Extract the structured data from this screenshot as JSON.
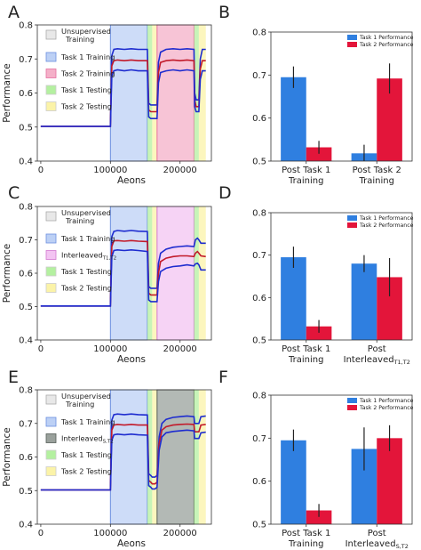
{
  "colors": {
    "task1": "#2f7fe0",
    "task2": "#e3153a",
    "unsup": "#e8e8e8",
    "task1_training": "#bcd0f5",
    "task2_training": "#f4b0c8",
    "interleaved_ac": "#f3c4f2",
    "interleaved_e": "#9aa19c",
    "task1_testing": "#b4f0a0",
    "task2_testing": "#fbf3a8",
    "trace_dark": "#1e2ccf",
    "trace_red": "#c21a2a"
  },
  "chart_data": [
    {
      "id": "A",
      "type": "line",
      "panel_label": "A",
      "xlabel": "Aeons",
      "ylabel": "Performance",
      "xlim": [
        -5000,
        245000
      ],
      "ylim": [
        0.4,
        0.8
      ],
      "xticks": [
        0,
        100000,
        200000
      ],
      "yticks": [
        0.4,
        0.5,
        0.6,
        0.7,
        0.8
      ],
      "legend": [
        "Unsupervised\nTraining",
        "Task 1 Training",
        "Task 2 Training",
        "Task 1 Testing",
        "Task 2 Testing"
      ],
      "legend_keys": [
        "unsup",
        "task1_training",
        "task2_training",
        "task1_testing",
        "task2_testing"
      ],
      "phases": [
        {
          "key": "task1_training",
          "start": 100000,
          "end": 153000
        },
        {
          "key": "task1_testing",
          "start": 153000,
          "end": 160000
        },
        {
          "key": "task2_testing",
          "start": 160000,
          "end": 167000
        },
        {
          "key": "task2_training",
          "start": 167000,
          "end": 220000
        },
        {
          "key": "task1_testing",
          "start": 220000,
          "end": 227000
        },
        {
          "key": "task2_testing",
          "start": 227000,
          "end": 237000
        }
      ],
      "series": [
        {
          "color": "trace_dark",
          "x": [
            0,
            100000,
            102000,
            105000,
            110000,
            120000,
            130000,
            140000,
            153000,
            155000,
            158000,
            160000,
            164000,
            167000,
            169000,
            172000,
            180000,
            190000,
            200000,
            210000,
            220000,
            221000,
            223000,
            225000,
            227000,
            229000,
            232000,
            237000
          ],
          "y": [
            0.502,
            0.502,
            0.71,
            0.728,
            0.73,
            0.728,
            0.73,
            0.728,
            0.728,
            0.57,
            0.565,
            0.565,
            0.565,
            0.565,
            0.69,
            0.72,
            0.728,
            0.73,
            0.728,
            0.73,
            0.728,
            0.6,
            0.58,
            0.58,
            0.58,
            0.7,
            0.728,
            0.728
          ]
        },
        {
          "color": "trace_red",
          "x": [
            0,
            100000,
            102000,
            105000,
            110000,
            120000,
            130000,
            140000,
            153000,
            155000,
            158000,
            160000,
            164000,
            167000,
            169000,
            172000,
            180000,
            190000,
            200000,
            210000,
            220000,
            221000,
            223000,
            225000,
            227000,
            229000,
            232000,
            237000
          ],
          "y": [
            0.502,
            0.502,
            0.68,
            0.695,
            0.697,
            0.695,
            0.697,
            0.695,
            0.695,
            0.55,
            0.545,
            0.545,
            0.545,
            0.545,
            0.66,
            0.69,
            0.695,
            0.697,
            0.695,
            0.697,
            0.695,
            0.58,
            0.56,
            0.56,
            0.56,
            0.67,
            0.695,
            0.695
          ]
        },
        {
          "color": "trace_dark",
          "x": [
            0,
            100000,
            102000,
            105000,
            110000,
            120000,
            130000,
            140000,
            153000,
            155000,
            158000,
            160000,
            164000,
            167000,
            169000,
            172000,
            180000,
            190000,
            200000,
            210000,
            220000,
            221000,
            223000,
            225000,
            227000,
            229000,
            232000,
            237000
          ],
          "y": [
            0.502,
            0.502,
            0.65,
            0.665,
            0.668,
            0.665,
            0.668,
            0.665,
            0.665,
            0.53,
            0.525,
            0.525,
            0.525,
            0.525,
            0.63,
            0.66,
            0.665,
            0.668,
            0.665,
            0.668,
            0.665,
            0.56,
            0.545,
            0.545,
            0.545,
            0.64,
            0.665,
            0.665
          ]
        }
      ]
    },
    {
      "id": "B",
      "type": "bar",
      "panel_label": "B",
      "categories": [
        "Post Task 1\nTraining",
        "Post Task 2\nTraining"
      ],
      "ylim": [
        0.5,
        0.8
      ],
      "yticks": [
        0.5,
        0.6,
        0.7,
        0.8
      ],
      "series": [
        {
          "name": "Task 1 Performance",
          "color": "task1",
          "values": [
            0.695,
            0.518
          ],
          "err": [
            0.025,
            0.02
          ]
        },
        {
          "name": "Task 2 Performance",
          "color": "task2",
          "values": [
            0.532,
            0.692
          ],
          "err": [
            0.015,
            0.035
          ]
        }
      ]
    },
    {
      "id": "C",
      "type": "line",
      "panel_label": "C",
      "xlabel": "Aeons",
      "ylabel": "Performance",
      "xlim": [
        -5000,
        245000
      ],
      "ylim": [
        0.4,
        0.8
      ],
      "xticks": [
        0,
        100000,
        200000
      ],
      "yticks": [
        0.4,
        0.5,
        0.6,
        0.7,
        0.8
      ],
      "legend": [
        "Unsupervised\nTraining",
        "Task 1 Training",
        "Interleaved",
        "Task 1 Testing",
        "Task 2 Testing"
      ],
      "legend_subscripts": {
        "2": "T1,T2"
      },
      "legend_keys": [
        "unsup",
        "task1_training",
        "interleaved_ac",
        "task1_testing",
        "task2_testing"
      ],
      "phases": [
        {
          "key": "task1_training",
          "start": 100000,
          "end": 153000
        },
        {
          "key": "task1_testing",
          "start": 153000,
          "end": 160000
        },
        {
          "key": "task2_testing",
          "start": 160000,
          "end": 167000
        },
        {
          "key": "interleaved_ac",
          "start": 167000,
          "end": 220000
        },
        {
          "key": "task1_testing",
          "start": 220000,
          "end": 227000
        },
        {
          "key": "task2_testing",
          "start": 227000,
          "end": 237000
        }
      ],
      "series": [
        {
          "color": "trace_dark",
          "x": [
            0,
            100000,
            102000,
            105000,
            110000,
            120000,
            130000,
            140000,
            153000,
            155000,
            158000,
            160000,
            164000,
            167000,
            169000,
            172000,
            180000,
            190000,
            200000,
            210000,
            220000,
            222000,
            225000,
            227000,
            230000,
            237000
          ],
          "y": [
            0.502,
            0.502,
            0.71,
            0.725,
            0.728,
            0.726,
            0.728,
            0.726,
            0.725,
            0.56,
            0.555,
            0.555,
            0.555,
            0.555,
            0.63,
            0.66,
            0.672,
            0.678,
            0.68,
            0.682,
            0.68,
            0.7,
            0.705,
            0.7,
            0.69,
            0.69
          ]
        },
        {
          "color": "trace_red",
          "x": [
            0,
            100000,
            102000,
            105000,
            110000,
            120000,
            130000,
            140000,
            153000,
            155000,
            158000,
            160000,
            164000,
            167000,
            169000,
            172000,
            180000,
            190000,
            200000,
            210000,
            220000,
            222000,
            225000,
            227000,
            230000,
            237000
          ],
          "y": [
            0.502,
            0.502,
            0.68,
            0.697,
            0.698,
            0.696,
            0.698,
            0.696,
            0.695,
            0.54,
            0.535,
            0.535,
            0.535,
            0.535,
            0.6,
            0.635,
            0.645,
            0.65,
            0.652,
            0.652,
            0.65,
            0.66,
            0.665,
            0.66,
            0.652,
            0.65
          ]
        },
        {
          "color": "trace_dark",
          "x": [
            0,
            100000,
            102000,
            105000,
            110000,
            120000,
            130000,
            140000,
            153000,
            155000,
            158000,
            160000,
            164000,
            167000,
            169000,
            172000,
            180000,
            190000,
            200000,
            210000,
            220000,
            222000,
            225000,
            227000,
            230000,
            237000
          ],
          "y": [
            0.502,
            0.502,
            0.65,
            0.668,
            0.67,
            0.668,
            0.67,
            0.668,
            0.665,
            0.52,
            0.515,
            0.515,
            0.515,
            0.515,
            0.575,
            0.605,
            0.615,
            0.62,
            0.622,
            0.625,
            0.622,
            0.628,
            0.63,
            0.625,
            0.61,
            0.61
          ]
        }
      ]
    },
    {
      "id": "D",
      "type": "bar",
      "panel_label": "D",
      "categories": [
        "Post Task 1\nTraining",
        "Post\nInterleaved"
      ],
      "category_subscripts": {
        "1": "T1,T2"
      },
      "ylim": [
        0.5,
        0.8
      ],
      "yticks": [
        0.5,
        0.6,
        0.7,
        0.8
      ],
      "series": [
        {
          "name": "Task 1 Performance",
          "color": "task1",
          "values": [
            0.695,
            0.68
          ],
          "err": [
            0.025,
            0.02
          ]
        },
        {
          "name": "Task 2 Performance",
          "color": "task2",
          "values": [
            0.532,
            0.648
          ],
          "err": [
            0.015,
            0.045
          ]
        }
      ]
    },
    {
      "id": "E",
      "type": "line",
      "panel_label": "E",
      "xlabel": "Aeons",
      "ylabel": "Performance",
      "xlim": [
        -5000,
        245000
      ],
      "ylim": [
        0.4,
        0.8
      ],
      "xticks": [
        0,
        100000,
        200000
      ],
      "yticks": [
        0.4,
        0.5,
        0.6,
        0.7,
        0.8
      ],
      "legend": [
        "Unsupervised\nTraining",
        "Task 1 Training",
        "Interleaved",
        "Task 1 Testing",
        "Task 2 Testing"
      ],
      "legend_subscripts": {
        "2": "S,T2"
      },
      "legend_keys": [
        "unsup",
        "task1_training",
        "interleaved_e",
        "task1_testing",
        "task2_testing"
      ],
      "phases": [
        {
          "key": "task1_training",
          "start": 100000,
          "end": 153000
        },
        {
          "key": "task1_testing",
          "start": 153000,
          "end": 160000
        },
        {
          "key": "task2_testing",
          "start": 160000,
          "end": 167000
        },
        {
          "key": "interleaved_e",
          "start": 167000,
          "end": 220000
        },
        {
          "key": "task1_testing",
          "start": 220000,
          "end": 227000
        },
        {
          "key": "task2_testing",
          "start": 227000,
          "end": 237000
        }
      ],
      "series": [
        {
          "color": "trace_dark",
          "x": [
            0,
            100000,
            102000,
            105000,
            110000,
            120000,
            130000,
            140000,
            153000,
            155000,
            158000,
            160000,
            164000,
            167000,
            170000,
            174000,
            180000,
            190000,
            200000,
            210000,
            220000,
            221000,
            223000,
            225000,
            227000,
            230000,
            237000
          ],
          "y": [
            0.502,
            0.502,
            0.71,
            0.726,
            0.728,
            0.726,
            0.728,
            0.726,
            0.725,
            0.55,
            0.545,
            0.54,
            0.54,
            0.545,
            0.66,
            0.7,
            0.712,
            0.718,
            0.72,
            0.722,
            0.72,
            0.7,
            0.7,
            0.7,
            0.7,
            0.72,
            0.722
          ]
        },
        {
          "color": "trace_red",
          "x": [
            0,
            100000,
            102000,
            105000,
            110000,
            120000,
            130000,
            140000,
            153000,
            155000,
            158000,
            160000,
            164000,
            167000,
            170000,
            174000,
            180000,
            190000,
            200000,
            210000,
            220000,
            221000,
            223000,
            225000,
            227000,
            230000,
            237000
          ],
          "y": [
            0.502,
            0.502,
            0.68,
            0.695,
            0.697,
            0.695,
            0.697,
            0.695,
            0.695,
            0.53,
            0.525,
            0.52,
            0.52,
            0.525,
            0.64,
            0.68,
            0.69,
            0.695,
            0.697,
            0.698,
            0.697,
            0.675,
            0.675,
            0.675,
            0.675,
            0.695,
            0.697
          ]
        },
        {
          "color": "trace_dark",
          "x": [
            0,
            100000,
            102000,
            105000,
            110000,
            120000,
            130000,
            140000,
            153000,
            155000,
            158000,
            160000,
            164000,
            167000,
            170000,
            174000,
            180000,
            190000,
            200000,
            210000,
            220000,
            221000,
            223000,
            225000,
            227000,
            230000,
            237000
          ],
          "y": [
            0.502,
            0.502,
            0.65,
            0.666,
            0.668,
            0.666,
            0.668,
            0.666,
            0.665,
            0.515,
            0.51,
            0.505,
            0.505,
            0.51,
            0.62,
            0.66,
            0.672,
            0.676,
            0.678,
            0.68,
            0.678,
            0.655,
            0.655,
            0.655,
            0.655,
            0.672,
            0.674
          ]
        }
      ]
    },
    {
      "id": "F",
      "type": "bar",
      "panel_label": "F",
      "categories": [
        "Post Task 1\nTraining",
        "Post\nInterleaved"
      ],
      "category_subscripts": {
        "1": "S,T2"
      },
      "ylim": [
        0.5,
        0.8
      ],
      "yticks": [
        0.5,
        0.6,
        0.7,
        0.8
      ],
      "series": [
        {
          "name": "Task 1 Performance",
          "color": "task1",
          "values": [
            0.695,
            0.675
          ],
          "err": [
            0.025,
            0.05
          ]
        },
        {
          "name": "Task 2 Performance",
          "color": "task2",
          "values": [
            0.532,
            0.7
          ],
          "err": [
            0.015,
            0.03
          ]
        }
      ]
    }
  ]
}
